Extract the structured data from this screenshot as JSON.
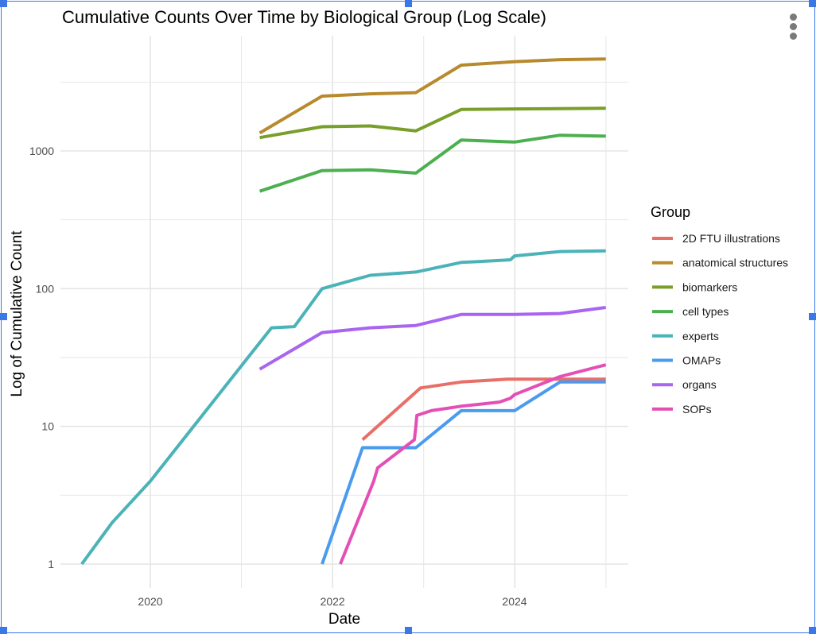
{
  "chart_data": {
    "type": "line",
    "title": "Cumulative Counts Over Time by Biological Group (Log Scale)",
    "xlabel": "Date",
    "ylabel": "Log of Cumulative Count",
    "x_ticks": [
      "2020",
      "2022",
      "2024"
    ],
    "y_ticks": [
      "1",
      "10",
      "100",
      "1000"
    ],
    "y_scale": "log10",
    "xlim": [
      "2018-08-01",
      "2025-05-01"
    ],
    "ylim": [
      0.8,
      7500
    ],
    "grid": true,
    "legend_title": "Group",
    "legend_position": "right",
    "series": [
      {
        "name": "2D FTU illustrations",
        "color": "#E76F68",
        "points": [
          [
            "2022-05-01",
            8
          ],
          [
            "2022-12-20",
            19
          ],
          [
            "2023-06-01",
            21
          ],
          [
            "2023-12-01",
            22
          ],
          [
            "2025-01-01",
            22
          ]
        ]
      },
      {
        "name": "anatomical structures",
        "color": "#B88A2E",
        "points": [
          [
            "2021-03-15",
            1350
          ],
          [
            "2021-11-20",
            2500
          ],
          [
            "2022-06-01",
            2600
          ],
          [
            "2022-12-01",
            2650
          ],
          [
            "2023-06-01",
            4200
          ],
          [
            "2024-01-01",
            4450
          ],
          [
            "2024-07-01",
            4600
          ],
          [
            "2025-01-01",
            4650
          ]
        ]
      },
      {
        "name": "biomarkers",
        "color": "#7A9E2A",
        "points": [
          [
            "2021-03-15",
            1250
          ],
          [
            "2021-11-20",
            1500
          ],
          [
            "2022-06-01",
            1520
          ],
          [
            "2022-12-01",
            1400
          ],
          [
            "2023-06-01",
            2000
          ],
          [
            "2024-01-01",
            2020
          ],
          [
            "2024-07-01",
            2030
          ],
          [
            "2025-01-01",
            2040
          ]
        ]
      },
      {
        "name": "cell types",
        "color": "#4CAF50",
        "points": [
          [
            "2021-03-15",
            510
          ],
          [
            "2021-11-20",
            720
          ],
          [
            "2022-06-01",
            730
          ],
          [
            "2022-12-01",
            690
          ],
          [
            "2023-06-01",
            1200
          ],
          [
            "2024-01-01",
            1160
          ],
          [
            "2024-07-01",
            1300
          ],
          [
            "2025-01-01",
            1280
          ]
        ]
      },
      {
        "name": "experts",
        "color": "#4BB3B8",
        "points": [
          [
            "2019-04-01",
            1
          ],
          [
            "2019-08-01",
            2
          ],
          [
            "2020-01-01",
            4
          ],
          [
            "2021-02-15",
            35
          ],
          [
            "2021-05-01",
            52
          ],
          [
            "2021-08-01",
            53
          ],
          [
            "2021-11-20",
            100
          ],
          [
            "2022-06-01",
            125
          ],
          [
            "2022-12-01",
            132
          ],
          [
            "2023-06-01",
            155
          ],
          [
            "2023-08-01",
            157
          ],
          [
            "2023-12-15",
            162
          ],
          [
            "2024-01-01",
            173
          ],
          [
            "2024-07-01",
            186
          ],
          [
            "2025-01-01",
            188
          ]
        ]
      },
      {
        "name": "OMAPs",
        "color": "#4A9BF0",
        "points": [
          [
            "2021-11-20",
            1
          ],
          [
            "2022-05-01",
            7
          ],
          [
            "2022-12-01",
            7
          ],
          [
            "2023-06-01",
            13
          ],
          [
            "2024-01-01",
            13
          ],
          [
            "2024-07-01",
            21
          ],
          [
            "2025-01-01",
            21
          ]
        ]
      },
      {
        "name": "organs",
        "color": "#A865F0",
        "points": [
          [
            "2021-03-15",
            26
          ],
          [
            "2021-11-20",
            48
          ],
          [
            "2022-06-01",
            52
          ],
          [
            "2022-12-01",
            54
          ],
          [
            "2023-06-01",
            65
          ],
          [
            "2024-01-01",
            65
          ],
          [
            "2024-07-01",
            66
          ],
          [
            "2025-01-01",
            73
          ]
        ]
      },
      {
        "name": "SOPs",
        "color": "#E44FB5",
        "points": [
          [
            "2022-02-01",
            1
          ],
          [
            "2022-06-15",
            4
          ],
          [
            "2022-07-01",
            5
          ],
          [
            "2022-11-25",
            8
          ],
          [
            "2022-12-01",
            10
          ],
          [
            "2022-12-05",
            12
          ],
          [
            "2023-02-01",
            13
          ],
          [
            "2023-06-01",
            14
          ],
          [
            "2023-11-01",
            15
          ],
          [
            "2023-12-15",
            16
          ],
          [
            "2024-01-01",
            17
          ],
          [
            "2024-07-01",
            23
          ],
          [
            "2025-01-01",
            28
          ]
        ]
      }
    ]
  },
  "colors": {
    "selection": "#3b78e7",
    "grid": "#e5e5e5",
    "axis_text": "#4d4d4d"
  },
  "menu_icon": "more-vert-icon"
}
